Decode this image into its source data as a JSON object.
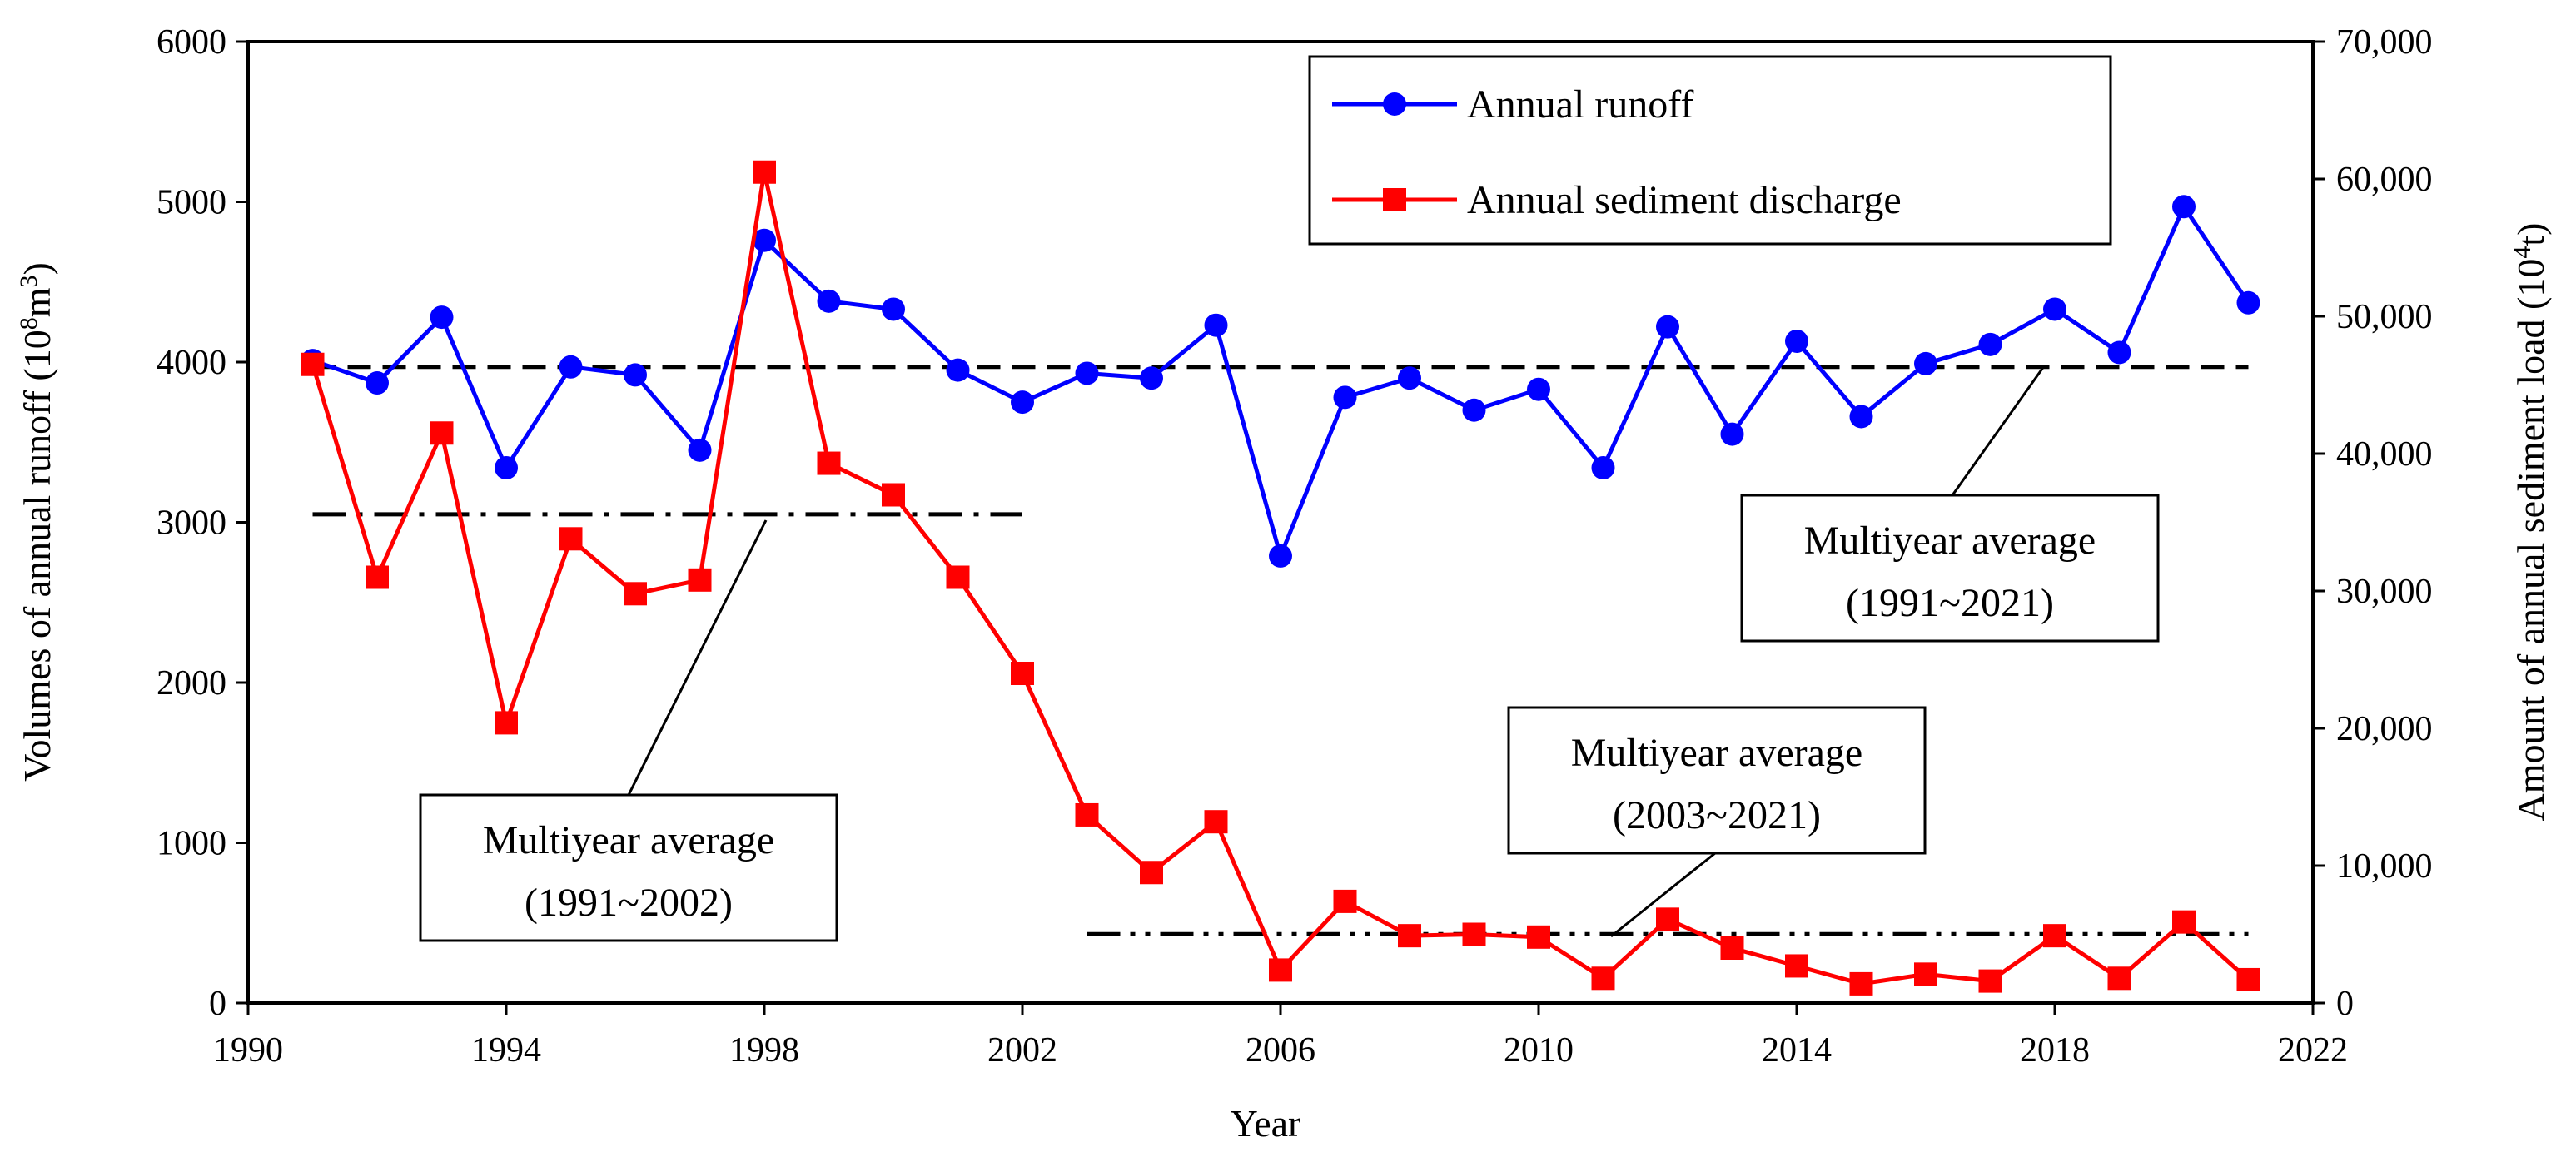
{
  "chart_data": {
    "type": "line",
    "x": [
      1991,
      1992,
      1993,
      1994,
      1995,
      1996,
      1997,
      1998,
      1999,
      2000,
      2001,
      2002,
      2003,
      2004,
      2005,
      2006,
      2007,
      2008,
      2009,
      2010,
      2011,
      2012,
      2013,
      2014,
      2015,
      2016,
      2017,
      2018,
      2019,
      2020,
      2021
    ],
    "series": [
      {
        "name": "Annual runoff",
        "axis": "left",
        "color": "#0000ff",
        "marker": "circle",
        "values": [
          4010,
          3870,
          4280,
          3340,
          3970,
          3920,
          3450,
          4760,
          4380,
          4330,
          3950,
          3750,
          3930,
          3900,
          4230,
          2790,
          3780,
          3900,
          3700,
          3830,
          3340,
          4220,
          3550,
          4130,
          3660,
          3990,
          4110,
          4330,
          4060,
          4970,
          4370
        ]
      },
      {
        "name": "Annual sediment discharge",
        "axis": "right",
        "color": "#ff0000",
        "marker": "square",
        "values": [
          46500,
          31000,
          41500,
          20400,
          33800,
          29800,
          30800,
          60500,
          39300,
          37000,
          31000,
          24000,
          13700,
          9500,
          13200,
          2400,
          7400,
          4900,
          5000,
          4800,
          1800,
          6100,
          4000,
          2700,
          1400,
          2100,
          1600,
          4900,
          1800,
          5900,
          1700
        ]
      }
    ],
    "averages": [
      {
        "label": "Multiyear average",
        "period": "(1991~2021)",
        "axis": "left",
        "value": 3970,
        "x_range": [
          1991,
          2021
        ],
        "style": "dashed"
      },
      {
        "label": "Multiyear average",
        "period": "(1991~2002)",
        "axis": "left",
        "value": 3050,
        "x_range": [
          1991,
          2002
        ],
        "style": "dash-dot"
      },
      {
        "label": "Multiyear average",
        "period": "(2003~2021)",
        "axis": "left",
        "value": 430,
        "x_range": [
          2003,
          2021
        ],
        "style": "dash-dot-dot"
      }
    ],
    "xlabel": "Year",
    "ylabel_left": "Volumes of annual runoff (10",
    "ylabel_left_sup": "8",
    "ylabel_left_unit": "m",
    "ylabel_left_unit_sup": "3",
    "ylabel_left_close": ")",
    "ylabel_right": "Amount of annual sediment load (10",
    "ylabel_right_sup": "4",
    "ylabel_right_close": "t)",
    "xlim": [
      1990,
      2022
    ],
    "ylim_left": [
      0,
      6000
    ],
    "ylim_right": [
      0,
      70000
    ],
    "xticks": [
      "1990",
      "1994",
      "1998",
      "2002",
      "2006",
      "2010",
      "2014",
      "2018",
      "2022"
    ],
    "yticks_left": [
      "0",
      "1000",
      "2000",
      "3000",
      "4000",
      "5000",
      "6000"
    ],
    "yticks_right": [
      "0",
      "10,000",
      "20,000",
      "30,000",
      "40,000",
      "50,000",
      "60,000",
      "70,000"
    ],
    "grid": false,
    "legend_position": "top-center"
  }
}
